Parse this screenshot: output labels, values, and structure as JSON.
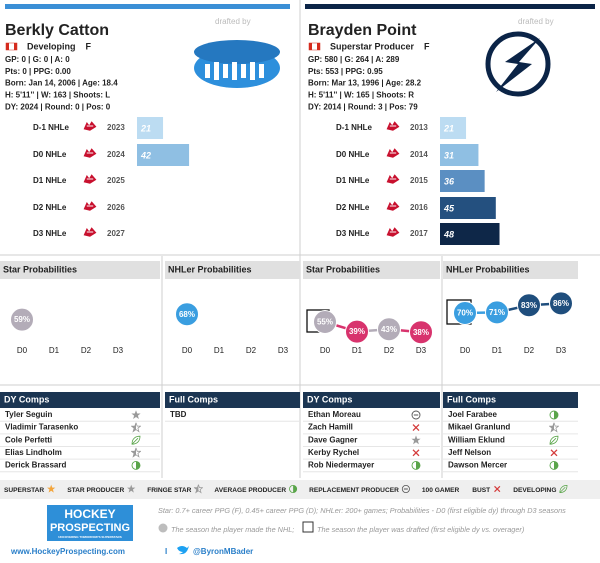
{
  "players": [
    {
      "name": "Berkly Catton",
      "drafted_by": "drafted by",
      "status": "Developing",
      "position": "F",
      "stats": [
        "GP: 0 | G: 0 | A: 0",
        "Pts: 0 | PPG: 0.00",
        "Born: Jan 14, 2006 | Age: 18.4",
        "H: 5'11'' | W: 163 | Shoots: L",
        "DY: 2024 | Round: 0 | Pos: 0"
      ],
      "nhle": {
        "labels": [
          "D-1 NHLe",
          "D0 NHLe",
          "D1 NHLe",
          "D2 NHLe",
          "D3 NHLe"
        ],
        "years": [
          2023,
          2024,
          2025,
          2026,
          2027
        ],
        "values": [
          21,
          42,
          null,
          null,
          null
        ],
        "colors": [
          "#bcdcf2",
          "#8fbfe3",
          null,
          null,
          null
        ]
      },
      "star_probabilities": {
        "title": "Star Probabilities",
        "categories": [
          "D0",
          "D1",
          "D2",
          "D3"
        ],
        "values": [
          59,
          null,
          null,
          null
        ],
        "value_labels": [
          "59%",
          null,
          null,
          null
        ],
        "colors": [
          "#b3acb8",
          null,
          null,
          null
        ]
      },
      "nhler_probabilities": {
        "title": "NHLer Probabilities",
        "categories": [
          "D0",
          "D1",
          "D2",
          "D3"
        ],
        "values": [
          68,
          null,
          null,
          null
        ],
        "value_labels": [
          "68%",
          null,
          null,
          null
        ],
        "colors": [
          "#3a9ee0",
          null,
          null,
          null
        ]
      },
      "dy_comps": {
        "title": "DY Comps",
        "names": [
          "Tyler Seguin",
          "Vladimir Tarasenko",
          "Cole Perfetti",
          "Elias Lindholm",
          "Derick Brassard"
        ]
      },
      "full_comps": {
        "title": "Full Comps",
        "names": [
          "TBD"
        ]
      }
    },
    {
      "name": "Brayden Point",
      "drafted_by": "drafted by",
      "status": "Superstar Producer",
      "position": "F",
      "stats": [
        "GP: 580 | G: 264 | A: 289",
        "Pts: 553 | PPG: 0.95",
        "Born: Mar 13, 1996 | Age: 28.2",
        "H: 5'11'' | W: 165 | Shoots: R",
        "DY: 2014 | Round: 3 | Pos: 79"
      ],
      "nhle": {
        "labels": [
          "D-1 NHLe",
          "D0 NHLe",
          "D1 NHLe",
          "D2 NHLe",
          "D3 NHLe"
        ],
        "years": [
          2013,
          2014,
          2015,
          2016,
          2017
        ],
        "values": [
          21,
          31,
          36,
          45,
          48
        ],
        "colors": [
          "#bcdcf2",
          "#8fbfe3",
          "#5b8fc2",
          "#24507f",
          "#0e2748"
        ]
      },
      "star_probabilities": {
        "title": "Star Probabilities",
        "categories": [
          "D0",
          "D1",
          "D2",
          "D3"
        ],
        "values": [
          55,
          39,
          43,
          38
        ],
        "value_labels": [
          "55%",
          "39%",
          "43%",
          "38%"
        ],
        "colors": [
          "#b3acb8",
          "#d8336d",
          "#b3acb8",
          "#d8336d"
        ]
      },
      "nhler_probabilities": {
        "title": "NHLer Probabilities",
        "categories": [
          "D0",
          "D1",
          "D2",
          "D3"
        ],
        "values": [
          70,
          71,
          83,
          86
        ],
        "value_labels": [
          "70%",
          "71%",
          "83%",
          "86%"
        ],
        "colors": [
          "#3a9ee0",
          "#3a9ee0",
          "#1f4e7d",
          "#1f4e7d"
        ]
      },
      "dy_comps": {
        "title": "DY Comps",
        "names": [
          "Ethan Moreau",
          "Zach Hamill",
          "Dave Gagner",
          "Kerby Rychel",
          "Rob Niedermayer"
        ]
      },
      "full_comps": {
        "title": "Full Comps",
        "names": [
          "Joel Farabee",
          "Mikael Granlund",
          "William Eklund",
          "Jeff Nelson",
          "Dawson Mercer"
        ]
      }
    }
  ],
  "legend": [
    "SUPERSTAR",
    "STAR PRODUCER",
    "FRINGE STAR",
    "AVERAGE PRODUCER",
    "REPLACEMENT PRODUCER",
    "100 GAMER",
    "BUST",
    "DEVELOPING"
  ],
  "footer": {
    "logo_top": "HOCKEY",
    "logo_bottom": "PROSPECTING",
    "logo_tagline": "UNCOVERING TOMORROW'S SUPERSTARS",
    "definition": "Star: 0.7+ career PPG (F), 0.45+ career PPG (D); NHLer: 200+ games; Probabilities - D0 (first eligible dy) through D3 seasons",
    "note_circle": "The season the player made the NHL;",
    "note_square": "The season the player was drafted (first eligible dy vs. overager)",
    "website": "www.HockeyProspecting.com",
    "separator": "I",
    "twitter": "@ByronMBader"
  }
}
